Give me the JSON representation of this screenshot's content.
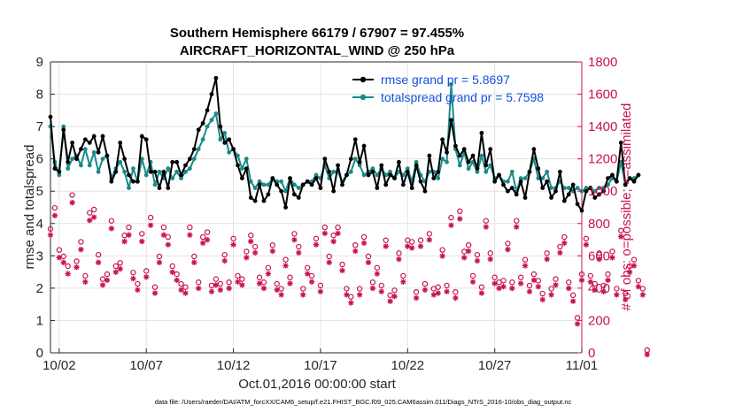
{
  "chart_data": {
    "type": "line",
    "title_lines": [
      "Southern Hemisphere 66179 / 67907 = 97.455%",
      "AIRCRAFT_HORIZONTAL_WIND @ 250 hPa"
    ],
    "xlabel": "Oct.01,2016 00:00:00 start",
    "ylabel_left": "rmse and totalspread",
    "ylabel_right": "# of obs: o=possible; ×=assimilated",
    "footnote": "data file: /Users/raeder/DAI/ATM_forcXX/CAM6_setup/f.e21.FHIST_BGC.f09_025.CAM6assim.011/Diags_NTrS_2016-10/obs_diag_output.nc",
    "x_tick_labels": [
      "10/02",
      "10/07",
      "10/12",
      "10/17",
      "10/22",
      "10/27",
      "11/01"
    ],
    "x_tick_days": [
      1,
      6,
      11,
      16,
      21,
      26,
      31
    ],
    "xlim": [
      0.5,
      31.0
    ],
    "left_axis": {
      "ylim": [
        0,
        9
      ],
      "ticks": [
        0,
        1,
        2,
        3,
        4,
        5,
        6,
        7,
        8,
        9
      ]
    },
    "right_axis": {
      "ylim": [
        0,
        1800
      ],
      "ticks": [
        0,
        200,
        400,
        600,
        800,
        1000,
        1200,
        1400,
        1600,
        1800
      ]
    },
    "x_days_step": 0.25,
    "x_days_start": 0.5,
    "grid": true,
    "legend_position": "top-right",
    "colors": {
      "rmse": "#000000",
      "spread": "#1a8a8a",
      "obs": "#c8144b",
      "legend_text": "#1450dc",
      "grid": "#e3e3e3"
    },
    "series": [
      {
        "name": "rmse grand pr = 5.8697",
        "axis": "left",
        "values": [
          7.3,
          5.7,
          5.6,
          6.9,
          5.9,
          6.5,
          6.0,
          6.3,
          6.6,
          6.5,
          6.7,
          6.2,
          6.7,
          6.1,
          5.3,
          5.6,
          6.5,
          6.0,
          5.5,
          5.3,
          5.3,
          6.7,
          6.6,
          5.6,
          5.6,
          5.1,
          5.6,
          5.1,
          5.9,
          5.9,
          5.5,
          5.8,
          6.0,
          6.3,
          6.9,
          7.1,
          7.5,
          8.0,
          8.5,
          7.0,
          6.5,
          6.6,
          6.3,
          5.8,
          5.4,
          5.7,
          4.8,
          4.7,
          5.2,
          4.7,
          4.9,
          5.4,
          5.2,
          5.0,
          4.5,
          5.4,
          4.9,
          4.8,
          5.2,
          5.3,
          5.2,
          5.4,
          5.1,
          6.0,
          5.6,
          5.0,
          5.8,
          5.2,
          5.5,
          6.0,
          6.6,
          5.9,
          6.4,
          5.5,
          5.6,
          5.1,
          5.8,
          5.2,
          5.5,
          5.4,
          5.9,
          5.2,
          5.6,
          5.1,
          5.8,
          5.3,
          5.0,
          6.1,
          5.4,
          5.6,
          6.6,
          6.2,
          7.2,
          6.4,
          6.1,
          6.3,
          5.9,
          6.1,
          5.7,
          6.8,
          5.8,
          6.3,
          5.3,
          5.5,
          5.2,
          5.0,
          5.1,
          4.9,
          5.3,
          4.8,
          5.6,
          6.3,
          5.7,
          5.1,
          5.3,
          4.8,
          5.0,
          5.6,
          4.7,
          4.9,
          5.2,
          4.6,
          4.4,
          5.0,
          5.1,
          4.8,
          4.9,
          5.0,
          5.4,
          5.5,
          5.3,
          6.5,
          5.2,
          5.4,
          5.3,
          5.5
        ],
        "markers": "dot"
      },
      {
        "name": "totalspread grand pr = 5.7598",
        "axis": "left",
        "values": [
          7.0,
          5.9,
          5.5,
          7.0,
          5.7,
          6.0,
          6.1,
          5.8,
          6.3,
          5.8,
          6.2,
          5.6,
          6.0,
          6.1,
          5.4,
          5.7,
          5.9,
          5.6,
          5.1,
          5.7,
          5.3,
          6.0,
          5.5,
          5.9,
          5.2,
          5.6,
          5.4,
          5.7,
          5.4,
          5.6,
          5.4,
          5.6,
          5.7,
          6.0,
          6.3,
          6.6,
          7.0,
          7.2,
          7.4,
          6.6,
          6.8,
          6.2,
          6.3,
          6.1,
          5.7,
          6.0,
          5.3,
          5.1,
          5.3,
          5.2,
          5.2,
          5.4,
          5.3,
          5.3,
          5.0,
          5.4,
          5.2,
          5.1,
          5.2,
          5.3,
          5.3,
          5.5,
          5.4,
          5.8,
          5.4,
          5.6,
          5.6,
          5.3,
          5.5,
          5.6,
          6.0,
          5.8,
          5.5,
          5.6,
          5.7,
          5.5,
          5.7,
          5.5,
          5.6,
          5.4,
          5.6,
          5.5,
          5.7,
          5.3,
          5.9,
          5.5,
          5.3,
          5.6,
          5.6,
          5.4,
          6.0,
          5.9,
          8.3,
          6.3,
          5.8,
          6.2,
          5.7,
          5.9,
          5.6,
          6.1,
          5.6,
          5.8,
          5.4,
          5.5,
          5.3,
          5.3,
          5.6,
          5.0,
          5.4,
          5.4,
          5.6,
          6.0,
          5.4,
          5.4,
          5.6,
          5.1,
          5.1,
          5.3,
          5.1,
          5.1,
          5.0,
          5.1,
          5.0,
          5.1,
          5.1,
          5.0,
          5.1,
          5.1,
          5.2,
          5.4,
          5.3,
          5.9,
          5.2,
          5.4,
          5.4,
          5.5
        ],
        "markers": "dot"
      },
      {
        "name": "obs possible",
        "axis": "right",
        "values": [
          750,
          880,
          620,
          580,
          520,
          960,
          550,
          670,
          460,
          850,
          870,
          590,
          440,
          470,
          800,
          520,
          540,
          710,
          760,
          480,
          410,
          720,
          490,
          820,
          390,
          580,
          760,
          700,
          520,
          470,
          410,
          390,
          760,
          580,
          420,
          700,
          730,
          400,
          440,
          410,
          590,
          420,
          690,
          460,
          440,
          610,
          710,
          640,
          450,
          420,
          510,
          650,
          410,
          380,
          560,
          450,
          720,
          640,
          380,
          510,
          460,
          690,
          400,
          760,
          580,
          710,
          760,
          530,
          380,
          330,
          650,
          380,
          700,
          580,
          420,
          510,
          400,
          680,
          340,
          370,
          600,
          460,
          680,
          670,
          360,
          680,
          410,
          720,
          380,
          390,
          620,
          400,
          820,
          360,
          860,
          610,
          650,
          460,
          590,
          390,
          800,
          600,
          450,
          420,
          430,
          660,
          420,
          800,
          450,
          560,
          400,
          470,
          430,
          350,
          600,
          380,
          440,
          640,
          700,
          420,
          340,
          200,
          470,
          690,
          460,
          410,
          600,
          400,
          470,
          610,
          380,
          740,
          350,
          520,
          560,
          430,
          380,
          0
        ],
        "markers": "circle"
      },
      {
        "name": "obs assimilated",
        "axis": "right",
        "values": [
          740,
          860,
          600,
          570,
          500,
          940,
          540,
          650,
          450,
          830,
          850,
          570,
          430,
          460,
          780,
          510,
          530,
          700,
          740,
          470,
          400,
          700,
          480,
          800,
          380,
          570,
          740,
          680,
          510,
          460,
          400,
          380,
          740,
          570,
          410,
          690,
          710,
          390,
          430,
          400,
          580,
          410,
          680,
          450,
          430,
          600,
          700,
          630,
          440,
          410,
          500,
          640,
          400,
          370,
          550,
          440,
          710,
          630,
          370,
          500,
          450,
          680,
          390,
          750,
          570,
          700,
          750,
          520,
          370,
          320,
          640,
          370,
          690,
          570,
          410,
          500,
          390,
          670,
          330,
          360,
          590,
          450,
          670,
          660,
          350,
          670,
          400,
          710,
          370,
          380,
          610,
          390,
          800,
          350,
          840,
          600,
          640,
          450,
          580,
          380,
          790,
          590,
          440,
          410,
          420,
          650,
          410,
          790,
          440,
          550,
          390,
          460,
          420,
          340,
          590,
          370,
          430,
          630,
          690,
          410,
          330,
          190,
          460,
          680,
          450,
          400,
          590,
          390,
          460,
          600,
          370,
          730,
          340,
          510,
          550,
          420,
          370,
          0
        ],
        "markers": "star"
      }
    ]
  }
}
